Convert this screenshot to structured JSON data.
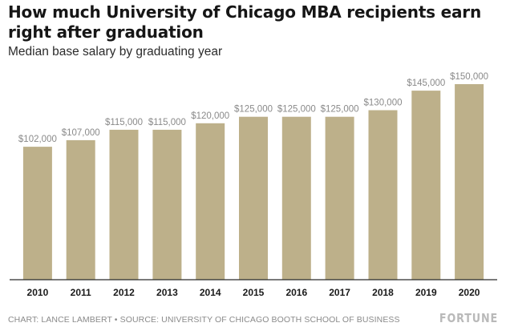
{
  "chart_data": {
    "type": "bar",
    "title": "How much University of Chicago MBA recipients earn right after graduation",
    "subtitle": "Median base salary by graduating year",
    "xlabel": "",
    "ylabel": "",
    "categories": [
      "2010",
      "2011",
      "2012",
      "2013",
      "2014",
      "2015",
      "2016",
      "2017",
      "2018",
      "2019",
      "2020"
    ],
    "values": [
      102000,
      107000,
      115000,
      115000,
      120000,
      125000,
      125000,
      125000,
      130000,
      145000,
      150000
    ],
    "value_labels": [
      "$102,000",
      "$107,000",
      "$115,000",
      "$115,000",
      "$120,000",
      "$125,000",
      "$125,000",
      "$125,000",
      "$130,000",
      "$145,000",
      "$150,000"
    ],
    "ylim": [
      0,
      150000
    ],
    "grid": false,
    "legend": "none",
    "bar_color": "#bdb08a"
  },
  "footer": {
    "source": "CHART: LANCE LAMBERT • SOURCE: UNIVERSITY OF CHICAGO BOOTH SCHOOL OF BUSINESS",
    "brand": "FORTUNE"
  }
}
